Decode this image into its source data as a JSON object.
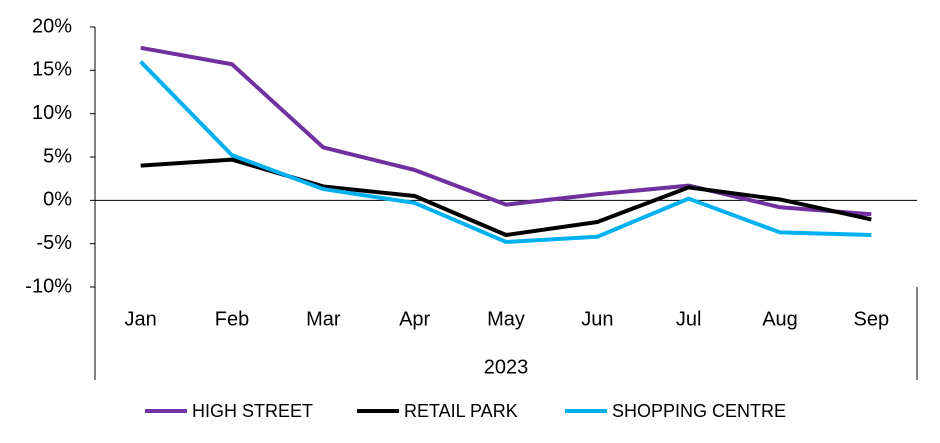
{
  "chart_data": {
    "type": "line",
    "categories": [
      "Jan",
      "Feb",
      "Mar",
      "Apr",
      "May",
      "Jun",
      "Jul",
      "Aug",
      "Sep"
    ],
    "x_group": "2023",
    "series": [
      {
        "name": "HIGH STREET",
        "color": "#7030a0",
        "values": [
          17.6,
          15.7,
          6.1,
          3.5,
          -0.5,
          0.7,
          1.7,
          -0.8,
          -1.6
        ]
      },
      {
        "name": "RETAIL PARK",
        "color": "#000000",
        "values": [
          4.0,
          4.7,
          1.6,
          0.5,
          -4.0,
          -2.5,
          1.5,
          0.1,
          -2.2
        ]
      },
      {
        "name": "SHOPPING CENTRE",
        "color": "#00b0f0",
        "values": [
          16.0,
          5.2,
          1.3,
          -0.3,
          -4.8,
          -4.2,
          0.2,
          -3.7,
          -4.0
        ]
      }
    ],
    "ylim": [
      -10,
      20
    ],
    "yticks": [
      {
        "value": -10,
        "label": "-10%"
      },
      {
        "value": -5,
        "label": "-5%"
      },
      {
        "value": 0,
        "label": "0%"
      },
      {
        "value": 5,
        "label": "5%"
      },
      {
        "value": 10,
        "label": "10%"
      },
      {
        "value": 15,
        "label": "15%"
      },
      {
        "value": 20,
        "label": "20%"
      }
    ],
    "legend": "bottom"
  }
}
